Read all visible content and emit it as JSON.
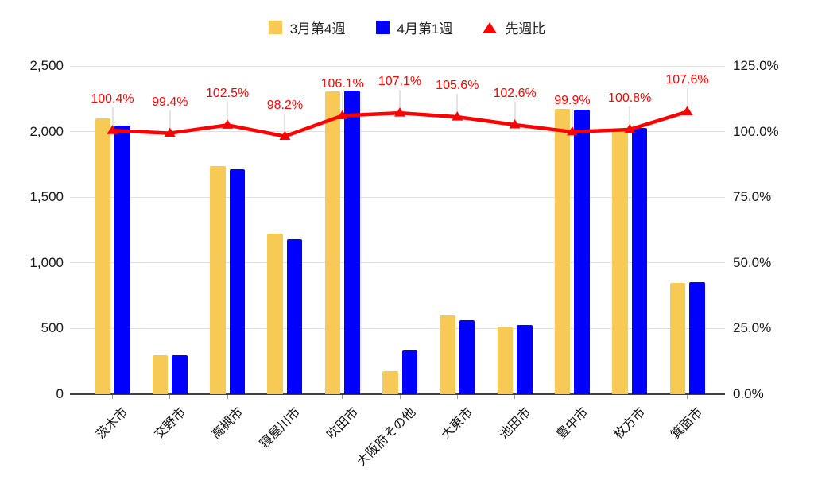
{
  "chart_data": {
    "type": "bar",
    "subtype": "grouped-bars-with-line-dual-axis",
    "title": "",
    "categories": [
      "茨木市",
      "交野市",
      "高槻市",
      "寝屋川市",
      "吹田市",
      "大阪府その他",
      "大東市",
      "池田市",
      "豊中市",
      "枚方市",
      "箕面市"
    ],
    "series": [
      {
        "name": "3月第4週",
        "type": "bar",
        "axis": "left",
        "color": "#F7CA55",
        "values": [
          2100,
          295,
          1740,
          1225,
          2305,
          175,
          600,
          515,
          2175,
          2010,
          845
        ]
      },
      {
        "name": "4月第1週",
        "type": "bar",
        "axis": "left",
        "color": "#0000FF",
        "values": [
          2045,
          295,
          1715,
          1180,
          2315,
          335,
          560,
          525,
          2170,
          2025,
          855
        ]
      },
      {
        "name": "先週比",
        "type": "line",
        "axis": "right",
        "color": "#FF0000",
        "marker": "triangle",
        "values": [
          100.4,
          99.4,
          102.5,
          98.2,
          106.1,
          107.1,
          105.6,
          102.6,
          99.9,
          100.8,
          107.6
        ],
        "point_labels": [
          "100.4%",
          "99.4%",
          "102.5%",
          "98.2%",
          "106.1%",
          "107.1%",
          "105.6%",
          "102.6%",
          "99.9%",
          "100.8%",
          "107.6%"
        ]
      }
    ],
    "left_axis": {
      "min": 0,
      "max": 2500,
      "ticks": [
        "0",
        "500",
        "1,000",
        "1,500",
        "2,000",
        "2,500"
      ]
    },
    "right_axis": {
      "min": 0,
      "max": 125,
      "ticks": [
        "0.0%",
        "25.0%",
        "50.0%",
        "75.0%",
        "100.0%",
        "125.0%"
      ]
    },
    "grid": "horizontal",
    "legend_position": "top"
  },
  "colors": {
    "background": "#FFFFFF",
    "bar_yellow": "#F7CA55",
    "bar_blue": "#0000FF",
    "line_red": "#FF0000",
    "gridline": "#E0E0E0",
    "baseline": "#424242",
    "axis_text": "#1A1A1A",
    "leader_line": "#E3E3E3"
  }
}
